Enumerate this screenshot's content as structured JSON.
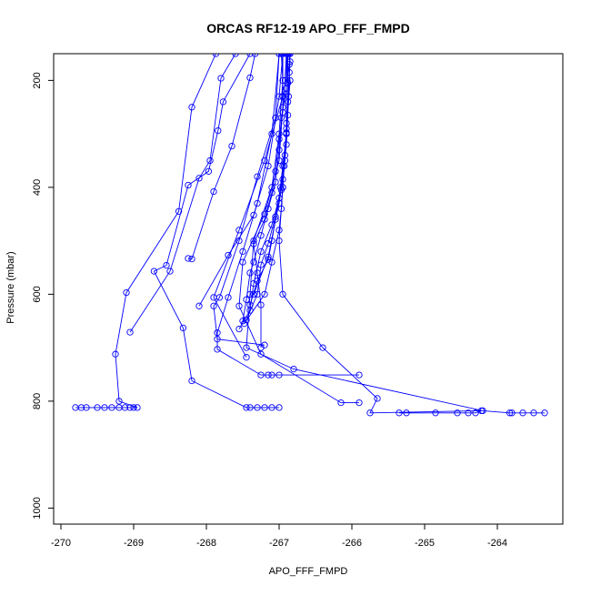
{
  "chart_data": {
    "type": "scatter",
    "title": "ORCAS RF12-19 APO_FFF_FMPD",
    "xlabel": "APO_FFF_FMPD",
    "ylabel": "Pressure (mbar)",
    "xlim": [
      -270.1,
      -263.1
    ],
    "ylim": [
      1030,
      150
    ],
    "y_reversed": true,
    "x_ticks": [
      -270,
      -269,
      -268,
      -267,
      -266,
      -265,
      -264
    ],
    "y_ticks": [
      200,
      400,
      600,
      800,
      1000
    ],
    "grid": false,
    "legend": "none",
    "color": "#0000ff",
    "series": [
      {
        "name": "",
        "points": [
          [
            -269.8,
            812
          ],
          [
            -269.72,
            812
          ],
          [
            -269.65,
            812
          ],
          [
            -269.5,
            812
          ],
          [
            -269.4,
            812
          ],
          [
            -269.3,
            812
          ],
          [
            -269.2,
            812
          ],
          [
            -269.12,
            812
          ],
          [
            -269.05,
            812
          ],
          [
            -269.0,
            812
          ],
          [
            -268.95,
            812
          ],
          [
            -269.2,
            800
          ],
          [
            -269.25,
            712
          ],
          [
            -269.1,
            597
          ],
          [
            -268.38,
            445
          ],
          [
            -268.2,
            250
          ],
          [
            -267.87,
            150
          ]
        ]
      },
      {
        "name": "",
        "points": [
          [
            -267.0,
            812
          ],
          [
            -267.1,
            812
          ],
          [
            -267.2,
            812
          ],
          [
            -267.3,
            812
          ],
          [
            -267.4,
            812
          ],
          [
            -267.45,
            812
          ],
          [
            -268.2,
            762
          ],
          [
            -268.32,
            663
          ],
          [
            -268.72,
            557
          ],
          [
            -268.55,
            546
          ],
          [
            -268.25,
            396
          ],
          [
            -267.97,
            370
          ],
          [
            -267.84,
            294
          ],
          [
            -267.77,
            240
          ],
          [
            -267.4,
            150
          ]
        ]
      },
      {
        "name": "",
        "points": [
          [
            -269.05,
            671
          ],
          [
            -268.5,
            557
          ],
          [
            -268.1,
            383
          ],
          [
            -267.95,
            350
          ],
          [
            -267.8,
            196
          ],
          [
            -267.6,
            150
          ]
        ]
      },
      {
        "name": "",
        "points": [
          [
            -268.25,
            533
          ],
          [
            -268.2,
            534
          ],
          [
            -267.9,
            408
          ],
          [
            -267.65,
            323
          ],
          [
            -267.4,
            195
          ],
          [
            -267.33,
            150
          ]
        ]
      },
      {
        "name": "",
        "points": [
          [
            -268.1,
            622
          ],
          [
            -267.7,
            527
          ],
          [
            -267.35,
            452
          ],
          [
            -267.15,
            360
          ],
          [
            -267.0,
            230
          ],
          [
            -266.95,
            150
          ]
        ]
      },
      {
        "name": "",
        "points": [
          [
            -265.35,
            822
          ],
          [
            -265.25,
            822
          ],
          [
            -264.85,
            822
          ],
          [
            -264.55,
            822
          ],
          [
            -264.4,
            822
          ],
          [
            -264.3,
            822
          ],
          [
            -264.22,
            818
          ],
          [
            -265.75,
            822
          ],
          [
            -265.65,
            795
          ],
          [
            -266.4,
            700
          ],
          [
            -266.95,
            600
          ],
          [
            -267.0,
            500
          ],
          [
            -266.95,
            400
          ],
          [
            -266.9,
            300
          ],
          [
            -266.85,
            200
          ],
          [
            -266.9,
            150
          ]
        ]
      },
      {
        "name": "",
        "points": [
          [
            -263.35,
            822
          ],
          [
            -263.5,
            822
          ],
          [
            -263.65,
            822
          ],
          [
            -263.8,
            822
          ],
          [
            -263.83,
            822
          ],
          [
            -264.2,
            818
          ],
          [
            -266.8,
            740
          ],
          [
            -267.45,
            700
          ],
          [
            -267.4,
            600
          ],
          [
            -267.35,
            500
          ],
          [
            -267.1,
            400
          ],
          [
            -267.0,
            300
          ],
          [
            -266.95,
            200
          ],
          [
            -266.97,
            150
          ]
        ]
      },
      {
        "name": "",
        "points": [
          [
            -265.9,
            803
          ],
          [
            -266.15,
            803
          ],
          [
            -267.25,
            712
          ],
          [
            -267.55,
            622
          ],
          [
            -267.5,
            540
          ],
          [
            -267.2,
            450
          ],
          [
            -267.0,
            350
          ],
          [
            -266.95,
            250
          ],
          [
            -266.95,
            150
          ]
        ]
      },
      {
        "name": "",
        "points": [
          [
            -265.9,
            751
          ],
          [
            -267.0,
            751
          ],
          [
            -267.1,
            751
          ],
          [
            -267.15,
            751
          ],
          [
            -267.25,
            751
          ],
          [
            -267.85,
            703
          ],
          [
            -267.85,
            672
          ],
          [
            -267.7,
            606
          ],
          [
            -267.5,
            520
          ],
          [
            -267.3,
            430
          ],
          [
            -267.1,
            300
          ],
          [
            -267.0,
            150
          ]
        ]
      },
      {
        "name": "",
        "points": [
          [
            -267.2,
            695
          ],
          [
            -267.85,
            684
          ],
          [
            -267.9,
            622
          ],
          [
            -267.82,
            606
          ],
          [
            -267.55,
            500
          ],
          [
            -267.3,
            380
          ],
          [
            -267.05,
            270
          ],
          [
            -267.0,
            150
          ]
        ]
      },
      {
        "name": "",
        "points": [
          [
            -267.45,
            718
          ],
          [
            -267.9,
            606
          ],
          [
            -267.55,
            480
          ],
          [
            -267.2,
            350
          ],
          [
            -266.95,
            230
          ],
          [
            -266.95,
            150
          ]
        ]
      },
      {
        "name": "",
        "points": [
          [
            -267.25,
            700
          ],
          [
            -267.25,
            620
          ],
          [
            -267.3,
            560
          ],
          [
            -267.35,
            506
          ],
          [
            -267.2,
            460
          ],
          [
            -267.1,
            410
          ],
          [
            -267.05,
            370
          ],
          [
            -267.0,
            310
          ],
          [
            -266.95,
            260
          ],
          [
            -266.92,
            200
          ],
          [
            -266.9,
            150
          ]
        ]
      },
      {
        "name": "",
        "points": [
          [
            -267.5,
            650
          ],
          [
            -267.45,
            610
          ],
          [
            -267.4,
            560
          ],
          [
            -267.35,
            540
          ],
          [
            -267.25,
            490
          ],
          [
            -267.15,
            440
          ],
          [
            -267.05,
            390
          ],
          [
            -267.0,
            330
          ],
          [
            -266.97,
            270
          ],
          [
            -266.9,
            215
          ],
          [
            -266.88,
            150
          ]
        ]
      },
      {
        "name": "",
        "points": [
          [
            -267.55,
            665
          ],
          [
            -267.4,
            630
          ],
          [
            -267.35,
            580
          ],
          [
            -267.25,
            520
          ],
          [
            -267.1,
            470
          ],
          [
            -267.0,
            420
          ],
          [
            -266.95,
            360
          ],
          [
            -266.9,
            300
          ],
          [
            -266.88,
            240
          ],
          [
            -266.86,
            185
          ],
          [
            -266.85,
            150
          ]
        ]
      },
      {
        "name": "",
        "points": [
          [
            -267.45,
            648
          ],
          [
            -267.3,
            600
          ],
          [
            -267.25,
            545
          ],
          [
            -267.15,
            505
          ],
          [
            -267.05,
            455
          ],
          [
            -266.98,
            400
          ],
          [
            -266.92,
            350
          ],
          [
            -266.9,
            290
          ],
          [
            -266.87,
            230
          ],
          [
            -266.86,
            170
          ],
          [
            -266.85,
            150
          ]
        ]
      },
      {
        "name": "",
        "points": [
          [
            -267.35,
            600
          ],
          [
            -267.15,
            530
          ],
          [
            -266.97,
            405
          ],
          [
            -266.9,
            298
          ],
          [
            -266.85,
            165
          ],
          [
            -266.87,
            150
          ]
        ]
      },
      {
        "name": "",
        "points": [
          [
            -267.4,
            620
          ],
          [
            -267.3,
            575
          ],
          [
            -267.15,
            535
          ],
          [
            -267.1,
            500
          ],
          [
            -267.05,
            460
          ],
          [
            -267.0,
            430
          ],
          [
            -266.95,
            385
          ],
          [
            -266.92,
            340
          ],
          [
            -266.9,
            280
          ],
          [
            -266.9,
            225
          ],
          [
            -266.9,
            150
          ]
        ]
      },
      {
        "name": "",
        "points": [
          [
            -267.48,
            655
          ],
          [
            -267.2,
            600
          ],
          [
            -267.1,
            540
          ],
          [
            -267.0,
            480
          ],
          [
            -266.97,
            440
          ],
          [
            -266.95,
            400
          ],
          [
            -266.93,
            360
          ],
          [
            -266.9,
            320
          ],
          [
            -266.88,
            265
          ],
          [
            -266.88,
            205
          ],
          [
            -266.88,
            150
          ]
        ]
      }
    ]
  }
}
